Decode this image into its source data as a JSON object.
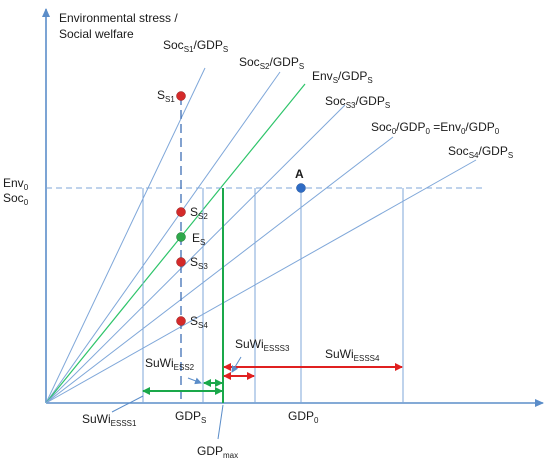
{
  "y_axis_title": {
    "line1": "Environmental stress /",
    "line2": "Social welfare"
  },
  "ray_labels": {
    "s1": {
      "main": "Soc",
      "sub": "S1",
      "rest": "/GDP",
      "sub2": "S"
    },
    "s2": {
      "main": "Soc",
      "sub": "S2",
      "rest": "/GDP",
      "sub2": "S"
    },
    "env": {
      "main": "Env",
      "sub": "S",
      "rest": "/GDP",
      "sub2": "S"
    },
    "s3": {
      "main": "Soc",
      "sub": "S3",
      "rest": "/GDP",
      "sub2": "S"
    },
    "zero": {
      "a": "Soc",
      "a_sub": "0",
      "b": "/GDP",
      "b_sub": "0",
      "c": " =Env",
      "c_sub": "0",
      "d": "/GDP",
      "d_sub": "0"
    },
    "s4": {
      "main": "Soc",
      "sub": "S4",
      "rest": "/GDP",
      "sub2": "S"
    }
  },
  "y_level_labels": {
    "env0": {
      "main": "Env",
      "sub": "0"
    },
    "soc0": {
      "main": "Soc",
      "sub": "0"
    }
  },
  "points": {
    "A": {
      "main": "A",
      "sub": "",
      "color": "#2e6bc4"
    },
    "S1": {
      "main": "S",
      "sub": "S1",
      "color": "#d42a2a"
    },
    "S2": {
      "main": "S",
      "sub": "S2",
      "color": "#d42a2a"
    },
    "ES": {
      "main": "E",
      "sub": "S",
      "color": "#2ea84a"
    },
    "S3": {
      "main": "S",
      "sub": "S3",
      "color": "#d42a2a"
    },
    "S4": {
      "main": "S",
      "sub": "S4",
      "color": "#d42a2a"
    }
  },
  "x_labels": {
    "gdps": {
      "main": "GDP",
      "sub": "S"
    },
    "gdp0": {
      "main": "GDP",
      "sub": "0"
    },
    "gdpmax": {
      "main": "GDP",
      "sub": "max"
    }
  },
  "suwi_labels": {
    "es2": {
      "main": "SuWi",
      "sub": "ESS2"
    },
    "es3": {
      "main": "SuWi",
      "sub": "ESSS3"
    },
    "es4": {
      "main": "SuWi",
      "sub": "ESSS4"
    },
    "es1": {
      "main": "SuWi",
      "sub": "ESSS1"
    }
  },
  "colors": {
    "axis": "#5b8dc9",
    "ray": "#7fa7d9",
    "env_ray": "#2ec46a",
    "green": "#1aa84a",
    "red": "#e02020"
  }
}
